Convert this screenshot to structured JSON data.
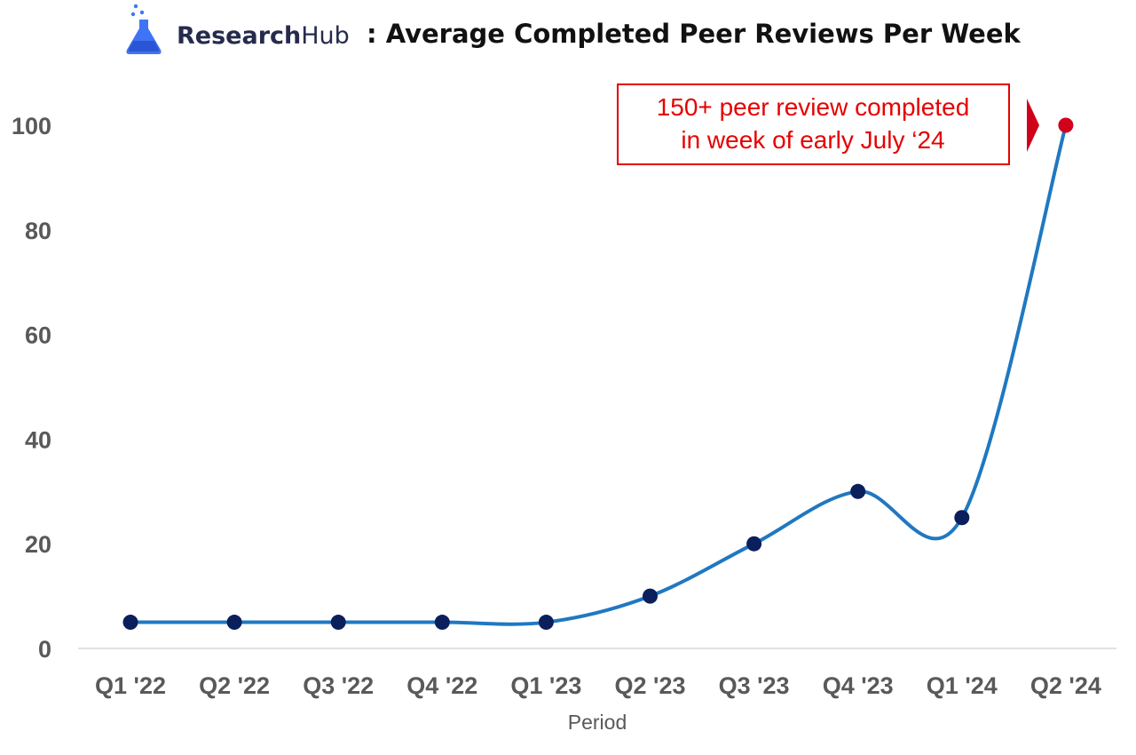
{
  "header": {
    "brand_bold": "Research",
    "brand_light": "Hub",
    "title": ": Average Completed Peer Reviews Per Week",
    "logo_icon": "flask-icon"
  },
  "chart_data": {
    "type": "line",
    "title": ": Average Completed Peer Reviews Per Week",
    "xlabel": "Period",
    "ylabel": "",
    "categories": [
      "Q1 '22",
      "Q2 '22",
      "Q3 '22",
      "Q4 '22",
      "Q1 '23",
      "Q2 '23",
      "Q3 '23",
      "Q4 '23",
      "Q1 '24",
      "Q2 '24"
    ],
    "values": [
      5,
      5,
      5,
      5,
      5,
      10,
      20,
      30,
      25,
      100
    ],
    "yticks": [
      0,
      20,
      40,
      60,
      80,
      100
    ],
    "ylim": [
      0,
      110
    ],
    "grid": false,
    "line_color": "#1f78c1",
    "marker_color": "#0b1f5c",
    "highlight_color": "#d0021b",
    "annotation": {
      "lines": [
        "150+ peer review completed",
        "in week of early July ‘24"
      ],
      "color": "#e60000",
      "target_index": 9
    }
  }
}
